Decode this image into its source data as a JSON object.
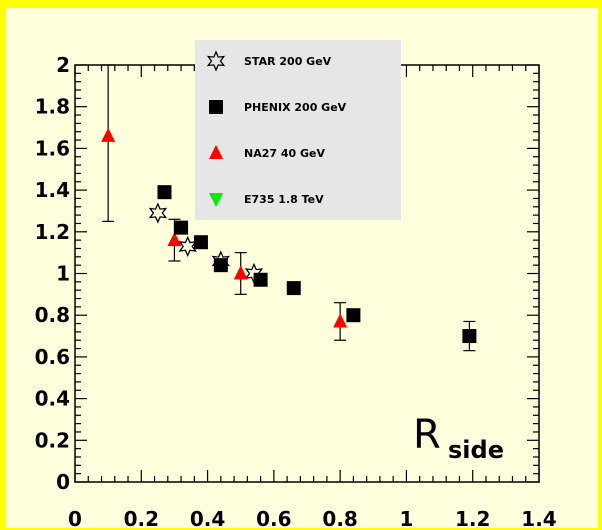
{
  "chart_data": {
    "type": "scatter",
    "title": "",
    "xlabel": "",
    "ylabel": "",
    "xlim": [
      0,
      1.4
    ],
    "ylim": [
      0,
      2
    ],
    "xticks": [
      "0",
      "0.2",
      "0.4",
      "0.6",
      "0.8",
      "1",
      "1.2",
      "1.4"
    ],
    "yticks": [
      "0",
      "0.2",
      "0.4",
      "0.6",
      "0.8",
      "1",
      "1.2",
      "1.4",
      "1.6",
      "1.8",
      "2"
    ],
    "annotation": {
      "main": "R",
      "sub": "side"
    },
    "grid": false,
    "legend_position": "top-center",
    "series": [
      {
        "name": "STAR 200 GeV",
        "marker": "open-star",
        "color": "#000000",
        "points": [
          {
            "x": 0.25,
            "y": 1.29
          },
          {
            "x": 0.34,
            "y": 1.13
          },
          {
            "x": 0.44,
            "y": 1.06
          },
          {
            "x": 0.54,
            "y": 1.0
          }
        ]
      },
      {
        "name": "PHENIX 200 GeV",
        "marker": "square",
        "color": "#000000",
        "points": [
          {
            "x": 0.27,
            "y": 1.39,
            "err": 0.02
          },
          {
            "x": 0.32,
            "y": 1.22,
            "err": 0.02
          },
          {
            "x": 0.38,
            "y": 1.15,
            "err": 0.02
          },
          {
            "x": 0.44,
            "y": 1.04,
            "err": 0.02
          },
          {
            "x": 0.56,
            "y": 0.97,
            "err": 0.02
          },
          {
            "x": 0.66,
            "y": 0.93,
            "err": 0.02
          },
          {
            "x": 0.84,
            "y": 0.8,
            "err": 0.02
          },
          {
            "x": 1.19,
            "y": 0.7,
            "err": 0.07
          }
        ]
      },
      {
        "name": "NA27 40 GeV",
        "marker": "triangle-up",
        "color": "#ff0000",
        "points": [
          {
            "x": 0.1,
            "y": 1.66,
            "err_low": 0.41,
            "err_high": 0.34
          },
          {
            "x": 0.3,
            "y": 1.16,
            "err": 0.1
          },
          {
            "x": 0.5,
            "y": 1.0,
            "err": 0.1
          },
          {
            "x": 0.8,
            "y": 0.77,
            "err": 0.09
          }
        ]
      },
      {
        "name": "E735 1.8 TeV",
        "marker": "triangle-down",
        "color": "#00ee00",
        "points": []
      }
    ]
  }
}
